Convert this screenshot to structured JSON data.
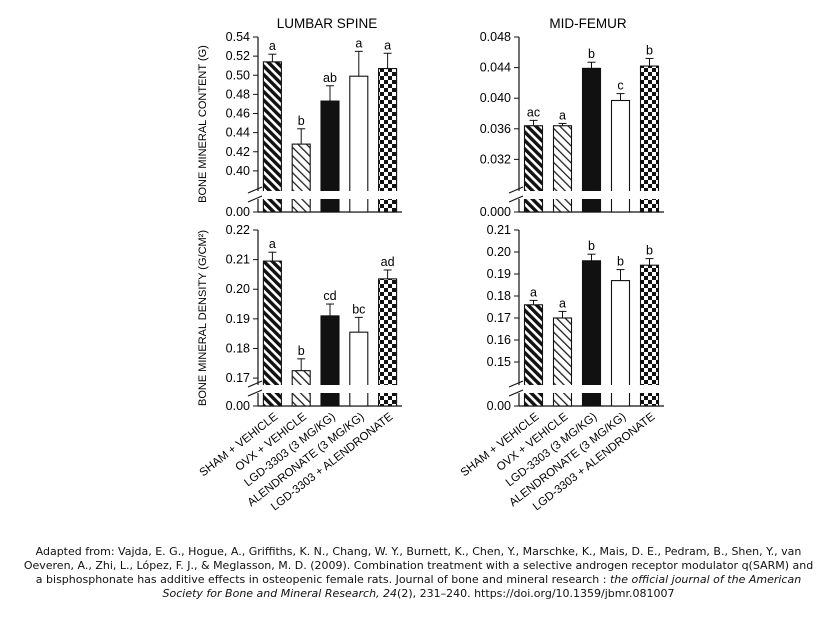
{
  "categories": [
    "SHAM + VEHICLE",
    "OVX + VEHICLE",
    "LGD-3303 (3 MG/KG)",
    "ALENDRONATE (3 MG/KG)",
    "LGD-3303 + ALENDRONATE"
  ],
  "fills": [
    "diag-dark",
    "diag-light",
    "solid-black",
    "open",
    "checker"
  ],
  "chart_data": [
    {
      "type": "bar",
      "title": "LUMBAR SPINE",
      "ylabel": "BONE MINERAL CONTENT (G)",
      "ylim": [
        0.38,
        0.54
      ],
      "axis_break": true,
      "ticks": [
        "0.40",
        "0.42",
        "0.44",
        "0.46",
        "0.48",
        "0.50",
        "0.52",
        "0.54"
      ],
      "zero_label": "0.00",
      "values": [
        0.514,
        0.428,
        0.473,
        0.499,
        0.507
      ],
      "errors": [
        0.008,
        0.016,
        0.016,
        0.026,
        0.016
      ],
      "letters": [
        "a",
        "b",
        "ab",
        "a",
        "a"
      ]
    },
    {
      "type": "bar",
      "title": "MID-FEMUR",
      "ylabel": "",
      "ylim": [
        0.028,
        0.048
      ],
      "axis_break": true,
      "ticks": [
        "0.032",
        "0.036",
        "0.040",
        "0.044",
        "0.048"
      ],
      "zero_label": "0.000",
      "values": [
        0.0364,
        0.0364,
        0.0439,
        0.0397,
        0.0442
      ],
      "errors": [
        0.0007,
        0.0003,
        0.0008,
        0.0009,
        0.001
      ],
      "letters": [
        "ac",
        "a",
        "b",
        "c",
        "b"
      ]
    },
    {
      "type": "bar",
      "title": "",
      "ylabel": "BONE MINERAL DENSITY (G/CM²)",
      "ylim": [
        0.168,
        0.22
      ],
      "axis_break": true,
      "ticks": [
        "0.17",
        "0.18",
        "0.19",
        "0.20",
        "0.21",
        "0.22"
      ],
      "zero_label": "0.00",
      "values": [
        0.2095,
        0.1725,
        0.191,
        0.1855,
        0.2035
      ],
      "errors": [
        0.003,
        0.004,
        0.004,
        0.005,
        0.003
      ],
      "letters": [
        "a",
        "b",
        "cd",
        "bc",
        "ad"
      ]
    },
    {
      "type": "bar",
      "title": "",
      "ylabel": "",
      "ylim": [
        0.14,
        0.21
      ],
      "axis_break": true,
      "ticks": [
        "0.15",
        "0.16",
        "0.17",
        "0.18",
        "0.19",
        "0.20",
        "0.21"
      ],
      "zero_label": "0.00",
      "values": [
        0.176,
        0.17,
        0.196,
        0.187,
        0.194
      ],
      "errors": [
        0.002,
        0.003,
        0.003,
        0.005,
        0.003
      ],
      "letters": [
        "a",
        "a",
        "b",
        "b",
        "b"
      ]
    }
  ],
  "citation": {
    "prefix": "Adapted from: Vajda, E. G., Hogue, A., Griffiths, K. N., Chang, W. Y., Burnett, K., Chen, Y., Marschke, K., Mais, D. E., Pedram, B., Shen, Y., van Oeveren, A., Zhi, L., López, F. J., & Meglasson, M. D. (2009). Combination treatment with a selective androgen receptor modulator q(SARM) and a bisphosphonate has additive effects in osteopenic female rats. Journal of bone and mineral research : ",
    "journal": "the official journal of the American Society for Bone and Mineral Research, 24",
    "suffix": "(2), 231–240. https://doi.org/10.1359/jbmr.081007"
  }
}
